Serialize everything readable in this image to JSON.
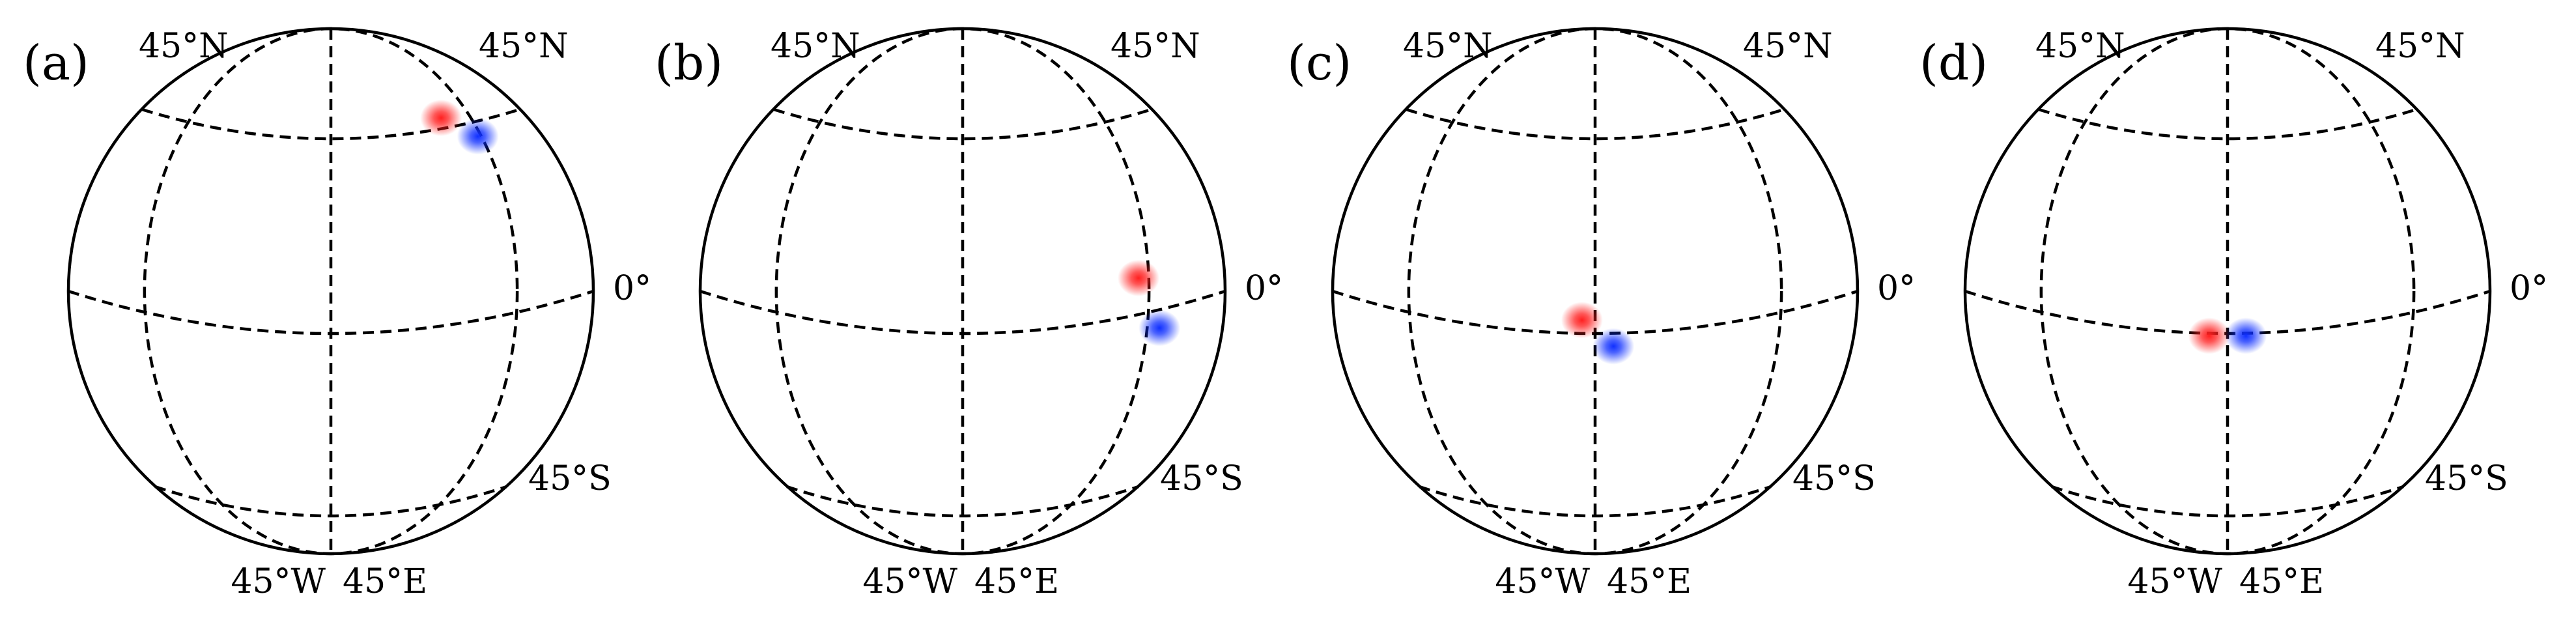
{
  "panels": [
    {
      "id": "a",
      "label": "(a)",
      "red_spot": [
        0.42,
        -0.66
      ],
      "blue_spot": [
        0.56,
        -0.59
      ],
      "red_color": "#ff2020",
      "blue_color": "#1030ff"
    },
    {
      "id": "b",
      "label": "(b)",
      "red_spot": [
        0.67,
        -0.05
      ],
      "blue_spot": [
        0.75,
        0.14
      ],
      "red_color": "#ff2020",
      "blue_color": "#1030ff"
    },
    {
      "id": "c",
      "label": "(c)",
      "red_spot": [
        -0.05,
        0.11
      ],
      "blue_spot": [
        0.07,
        0.21
      ],
      "red_color": "#ff2020",
      "blue_color": "#1030ff"
    },
    {
      "id": "d",
      "label": "(d)",
      "red_spot": [
        -0.07,
        0.17
      ],
      "blue_spot": [
        0.07,
        0.17
      ],
      "red_color": "#ff2020",
      "blue_color": "#1030ff"
    }
  ],
  "labels": {
    "nw": "45°N",
    "ne": "45°N",
    "equator": "0°",
    "se": "45°S",
    "west": "45°W",
    "east": "45°E"
  },
  "colors": {
    "line": "#000000",
    "background": "#ffffff"
  }
}
